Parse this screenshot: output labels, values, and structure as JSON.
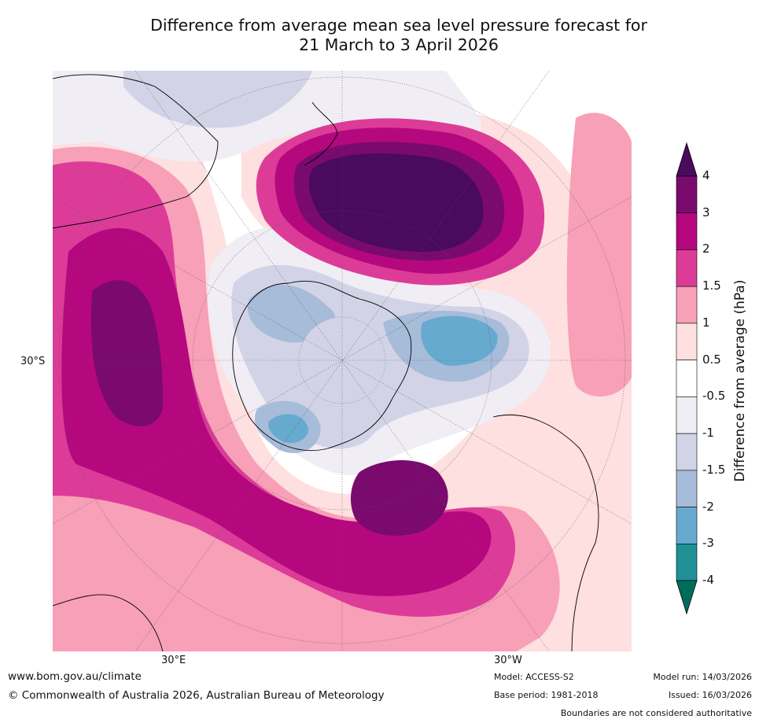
{
  "title_line1": "Difference from average mean sea level pressure forecast for",
  "title_line2": "21 March to 3 April 2026",
  "axis": {
    "lat_label": "30°S",
    "lon_east_label": "30°E",
    "lon_west_label": "30°W"
  },
  "colorbar": {
    "title": "Difference from average (hPa)",
    "levels": [
      "4",
      "3",
      "2",
      "1.5",
      "1",
      "0.5",
      "-0.5",
      "-1",
      "-1.5",
      "-2",
      "-3",
      "-4"
    ],
    "colors": {
      "gt4": "#4a0a5e",
      "l3_4": "#7a0a6e",
      "l2_3": "#b5087e",
      "l15_2": "#dc3c98",
      "l1_15": "#f7a0b8",
      "l05_1": "#fde0df",
      "neutral": "#ffffff",
      "lm1_m05": "#f1edf5",
      "lm15_m1": "#d2d3e6",
      "lm2_m15": "#a6bcd9",
      "lm3_m2": "#66aacf",
      "lm4_m3": "#1e9096",
      "lt_m4": "#016c59"
    }
  },
  "footer": {
    "url": "www.bom.gov.au/climate",
    "copyright": "© Commonwealth of Australia 2026, Australian Bureau of Meteorology",
    "model": "Model: ACCESS-S2",
    "base_period": "Base period: 1981-2018",
    "model_run": "Model run: 14/03/2026",
    "issued": "Issued: 16/03/2026",
    "disclaimer": "Boundaries are not considered authoritative"
  }
}
